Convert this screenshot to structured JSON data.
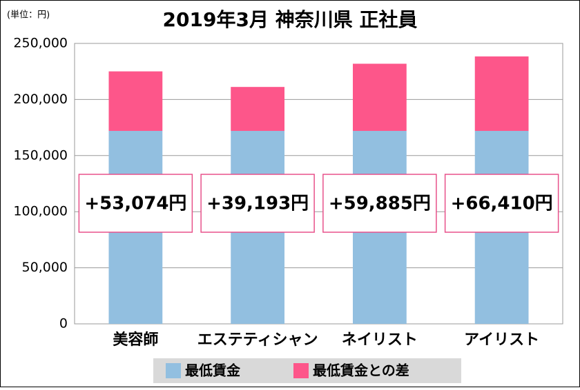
{
  "chart_data": {
    "type": "stacked-bar",
    "title": "2019年3月 神奈川県 正社員",
    "unit_label": "(単位：円)",
    "categories": [
      "美容師",
      "エステティシャン",
      "ネイリスト",
      "アイリスト"
    ],
    "series": [
      {
        "name": "最低賃金",
        "color": "#92bfe0",
        "values": [
          172000,
          172000,
          172000,
          172000
        ]
      },
      {
        "name": "最低賃金との差",
        "color": "#fd568a",
        "values": [
          53074,
          39193,
          59885,
          66410
        ],
        "value_labels": [
          "+53,074円",
          "+39,193円",
          "+59,885円",
          "+66,410円"
        ]
      }
    ],
    "ylim": [
      0,
      250000
    ],
    "yticks": [
      0,
      {
        "value": 50000,
        "label": "50,000"
      },
      {
        "value": 100000,
        "label": "100,000"
      },
      {
        "value": 150000,
        "label": "150,000"
      },
      {
        "value": 200000,
        "label": "200,000"
      },
      {
        "value": 250000,
        "label": "250,000"
      }
    ],
    "grid": true
  }
}
